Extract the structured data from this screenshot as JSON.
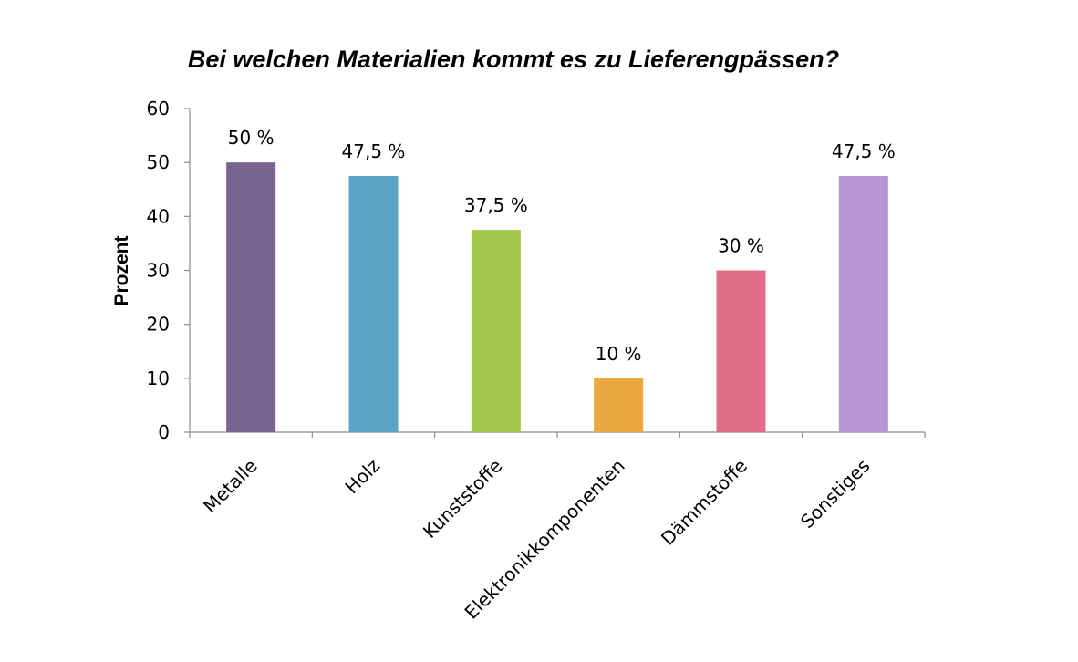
{
  "chart_data": {
    "type": "bar",
    "title": "Bei welchen Materialien kommt es zu Lieferengpässen?",
    "xlabel": "",
    "ylabel": "Prozent",
    "ylim": [
      0,
      60
    ],
    "yticks": [
      0,
      10,
      20,
      30,
      40,
      50,
      60
    ],
    "ytick_labels": [
      "0",
      "10",
      "20",
      "30",
      "40",
      "50",
      "60"
    ],
    "grid": false,
    "legend": "none",
    "categories": [
      "Metalle",
      "Holz",
      "Kunststoffe",
      "Elektronikkomponenten",
      "Dämmstoffe",
      "Sonstiges"
    ],
    "values": [
      50,
      47.5,
      37.5,
      10,
      30,
      47.5
    ],
    "data_labels": [
      "50 %",
      "47,5 %",
      "37,5 %",
      "10 %",
      "30 %",
      "47,5 %"
    ],
    "colors": [
      "#786490",
      "#5ba3c4",
      "#a2c64a",
      "#e9a840",
      "#e06c86",
      "#b794d6"
    ],
    "axis_color": "#8c8c8c"
  }
}
